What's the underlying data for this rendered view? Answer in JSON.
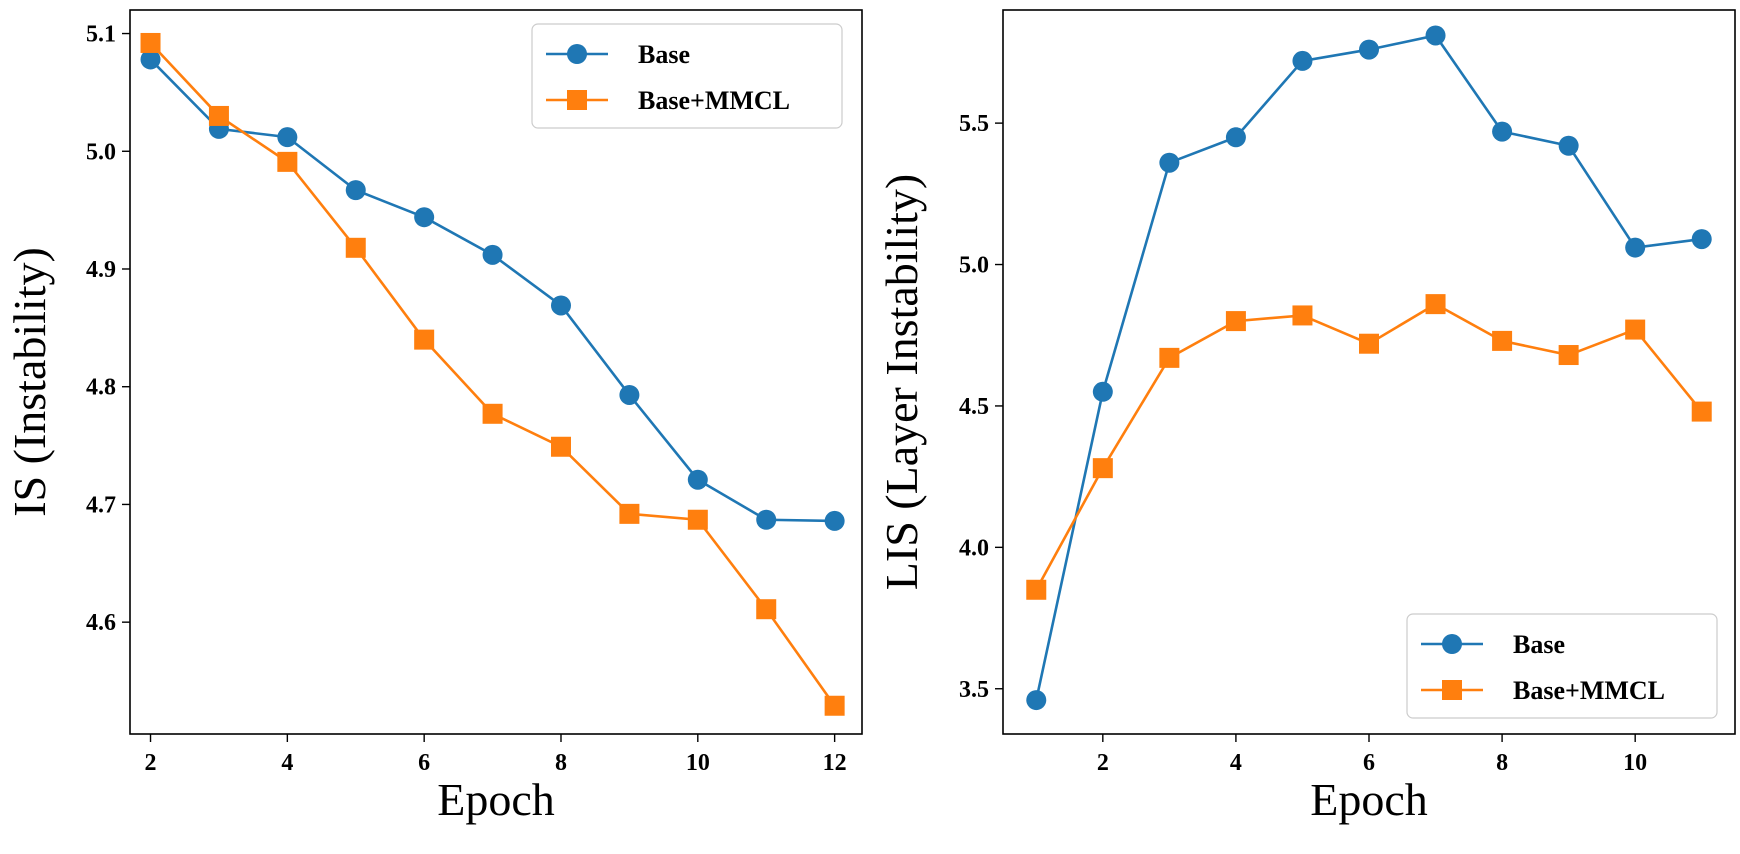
{
  "colors": {
    "base": "#1f77b4",
    "mmcl": "#ff7f0e"
  },
  "chart_data": [
    {
      "type": "line",
      "title": "",
      "xlabel": "Epoch",
      "ylabel": "IS (Instability)",
      "xlim": [
        1.7,
        12.4
      ],
      "ylim": [
        4.505,
        5.12
      ],
      "xticks": [
        2,
        4,
        6,
        8,
        10,
        12
      ],
      "xtick_labels": [
        "2",
        "4",
        "6",
        "8",
        "10",
        "12"
      ],
      "yticks": [
        4.6,
        4.7,
        4.8,
        4.9,
        5.0,
        5.1
      ],
      "ytick_labels": [
        "4.6",
        "4.7",
        "4.8",
        "4.9",
        "5.0",
        "5.1"
      ],
      "legend_position": "top-right",
      "series": [
        {
          "name": "Base",
          "marker": "circle",
          "x": [
            2,
            3,
            4,
            5,
            6,
            7,
            8,
            9,
            10,
            11,
            12
          ],
          "y": [
            5.078,
            5.019,
            5.012,
            4.967,
            4.944,
            4.912,
            4.869,
            4.793,
            4.721,
            4.687,
            4.686
          ]
        },
        {
          "name": "Base+MMCL",
          "marker": "square",
          "x": [
            2,
            3,
            4,
            5,
            6,
            7,
            8,
            9,
            10,
            11,
            12
          ],
          "y": [
            5.092,
            5.03,
            4.991,
            4.918,
            4.84,
            4.777,
            4.749,
            4.692,
            4.687,
            4.611,
            4.529
          ]
        }
      ]
    },
    {
      "type": "line",
      "title": "",
      "xlabel": "Epoch",
      "ylabel": "LIS (Layer Instability)",
      "xlim": [
        0.5,
        11.5
      ],
      "ylim": [
        3.34,
        5.9
      ],
      "xticks": [
        2,
        4,
        6,
        8,
        10
      ],
      "xtick_labels": [
        "2",
        "4",
        "6",
        "8",
        "10"
      ],
      "yticks": [
        3.5,
        4.0,
        4.5,
        5.0,
        5.5
      ],
      "ytick_labels": [
        "3.5",
        "4.0",
        "4.5",
        "5.0",
        "5.5"
      ],
      "legend_position": "bottom-right",
      "series": [
        {
          "name": "Base",
          "marker": "circle",
          "x": [
            1,
            2,
            3,
            4,
            5,
            6,
            7,
            8,
            9,
            10,
            11
          ],
          "y": [
            3.46,
            4.55,
            5.36,
            5.45,
            5.72,
            5.76,
            5.81,
            5.47,
            5.42,
            5.06,
            5.09
          ]
        },
        {
          "name": "Base+MMCL",
          "marker": "square",
          "x": [
            1,
            2,
            3,
            4,
            5,
            6,
            7,
            8,
            9,
            10,
            11
          ],
          "y": [
            3.85,
            4.28,
            4.67,
            4.8,
            4.82,
            4.72,
            4.86,
            4.73,
            4.68,
            4.77,
            4.48
          ]
        }
      ]
    }
  ]
}
